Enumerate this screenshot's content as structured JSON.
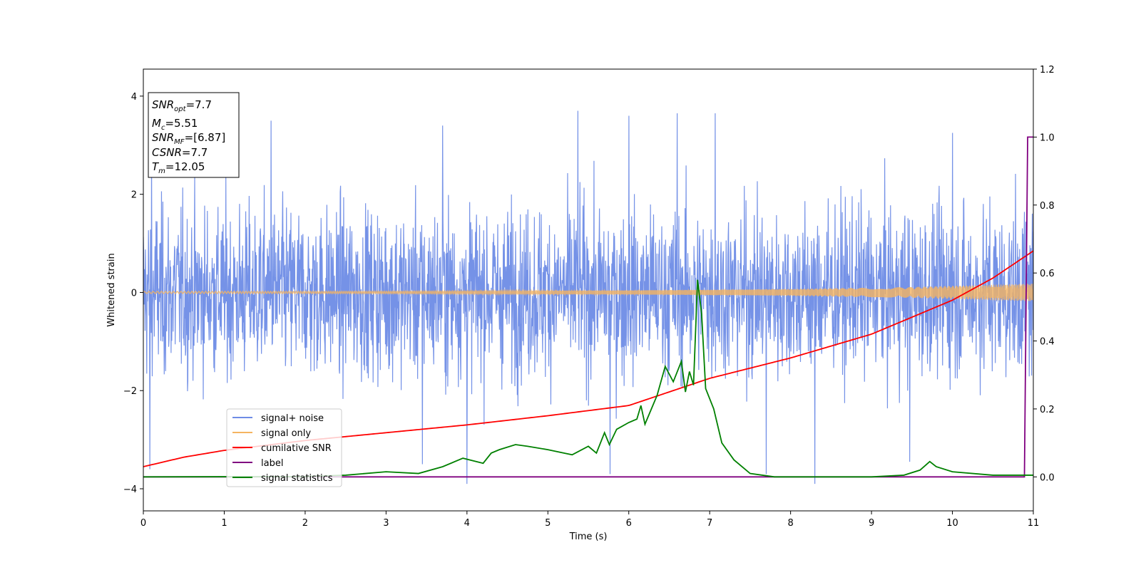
{
  "chart_data": {
    "type": "line",
    "xlabel": "Time (s)",
    "ylabel": "Whitened strain",
    "xlim": [
      0,
      11
    ],
    "ylim_left": [
      -4.45,
      4.55
    ],
    "ylim_right": [
      -0.1,
      1.2
    ],
    "x_ticks": [
      "0",
      "1",
      "2",
      "3",
      "4",
      "5",
      "6",
      "7",
      "8",
      "9",
      "10",
      "11"
    ],
    "y_left_ticks": [
      "4",
      "2",
      "0",
      "−2",
      "−4"
    ],
    "y_right_ticks": [
      "1.2",
      "1.0",
      "0.8",
      "0.6",
      "0.4",
      "0.2",
      "0.0"
    ],
    "legend": {
      "position": "lower-left",
      "entries": [
        {
          "label": "signal+ noise",
          "color": "#6e8ce6"
        },
        {
          "label": "signal only",
          "color": "#f5b461"
        },
        {
          "label": "cumilative SNR",
          "color": "#ff0000"
        },
        {
          "label": "label",
          "color": "#800080"
        },
        {
          "label": "signal statistics",
          "color": "#008000"
        }
      ]
    },
    "info_box": {
      "snr_opt": {
        "sym": "SNR",
        "sub": "opt",
        "val": "=7.7"
      },
      "mc": {
        "sym": "M",
        "sub": "c",
        "val": "=5.51"
      },
      "snr_mf": {
        "sym": "SNR",
        "sub": "MF",
        "val": "=[6.87]"
      },
      "csnr": {
        "sym": "CSNR",
        "val": "=7.7"
      },
      "tm": {
        "sym": "T",
        "sub": "m",
        "val": "=12.05"
      }
    },
    "series": [
      {
        "name": "signal+ noise",
        "axis": "left",
        "color": "#6e8ce6",
        "description": "whitened noisy strain, roughly between -2.5 and 2.5 with spikes to about +3.7 and -3.9",
        "envelope_upper": 2.3,
        "envelope_lower": -2.3,
        "peaks": [
          {
            "x": 0.1,
            "y": 2.9
          },
          {
            "x": 1.58,
            "y": 3.5
          },
          {
            "x": 3.7,
            "y": 3.4
          },
          {
            "x": 5.37,
            "y": 3.7
          },
          {
            "x": 6.0,
            "y": 3.6
          },
          {
            "x": 6.6,
            "y": 3.65
          },
          {
            "x": 7.07,
            "y": 3.65
          },
          {
            "x": 10.0,
            "y": 3.25
          },
          {
            "x": 4.0,
            "y": -3.9
          },
          {
            "x": 8.3,
            "y": -3.9
          },
          {
            "x": 5.77,
            "y": -3.7
          },
          {
            "x": 7.7,
            "y": -3.7
          },
          {
            "x": 3.45,
            "y": -3.5
          },
          {
            "x": 0.08,
            "y": -3.6
          },
          {
            "x": 9.47,
            "y": -3.45
          }
        ]
      },
      {
        "name": "signal only",
        "axis": "left",
        "color": "#f5b461",
        "description": "chirp waveform, amplitude growing from ~0.02 at t=0 to ~0.18 at t=11",
        "amplitude": [
          {
            "x": 0,
            "y": 0.02
          },
          {
            "x": 3,
            "y": 0.025
          },
          {
            "x": 6,
            "y": 0.04
          },
          {
            "x": 8,
            "y": 0.07
          },
          {
            "x": 9.5,
            "y": 0.11
          },
          {
            "x": 11,
            "y": 0.18
          }
        ]
      },
      {
        "name": "cumilative SNR",
        "axis": "right",
        "color": "#ff0000",
        "points": [
          {
            "x": 0,
            "y": 0.03
          },
          {
            "x": 0.5,
            "y": 0.058
          },
          {
            "x": 1,
            "y": 0.078
          },
          {
            "x": 2,
            "y": 0.107
          },
          {
            "x": 3,
            "y": 0.13
          },
          {
            "x": 4,
            "y": 0.153
          },
          {
            "x": 5,
            "y": 0.18
          },
          {
            "x": 6,
            "y": 0.21
          },
          {
            "x": 7,
            "y": 0.29
          },
          {
            "x": 8,
            "y": 0.35
          },
          {
            "x": 9,
            "y": 0.42
          },
          {
            "x": 10,
            "y": 0.52
          },
          {
            "x": 10.5,
            "y": 0.585
          },
          {
            "x": 11,
            "y": 0.665
          }
        ]
      },
      {
        "name": "label",
        "axis": "right",
        "color": "#800080",
        "points": [
          {
            "x": 0,
            "y": 0.0
          },
          {
            "x": 10.89,
            "y": 0.0
          },
          {
            "x": 10.93,
            "y": 1.0
          },
          {
            "x": 11,
            "y": 1.0
          }
        ]
      },
      {
        "name": "signal statistics",
        "axis": "right",
        "color": "#008000",
        "points": [
          {
            "x": 0,
            "y": 0.0
          },
          {
            "x": 2.0,
            "y": 0.001
          },
          {
            "x": 2.5,
            "y": 0.005
          },
          {
            "x": 3.0,
            "y": 0.015
          },
          {
            "x": 3.4,
            "y": 0.01
          },
          {
            "x": 3.7,
            "y": 0.03
          },
          {
            "x": 3.95,
            "y": 0.055
          },
          {
            "x": 4.2,
            "y": 0.04
          },
          {
            "x": 4.3,
            "y": 0.07
          },
          {
            "x": 4.4,
            "y": 0.08
          },
          {
            "x": 4.6,
            "y": 0.095
          },
          {
            "x": 4.75,
            "y": 0.09
          },
          {
            "x": 5.0,
            "y": 0.08
          },
          {
            "x": 5.3,
            "y": 0.065
          },
          {
            "x": 5.5,
            "y": 0.09
          },
          {
            "x": 5.6,
            "y": 0.07
          },
          {
            "x": 5.7,
            "y": 0.13
          },
          {
            "x": 5.76,
            "y": 0.095
          },
          {
            "x": 5.85,
            "y": 0.14
          },
          {
            "x": 6.0,
            "y": 0.16
          },
          {
            "x": 6.1,
            "y": 0.17
          },
          {
            "x": 6.15,
            "y": 0.21
          },
          {
            "x": 6.2,
            "y": 0.155
          },
          {
            "x": 6.35,
            "y": 0.24
          },
          {
            "x": 6.45,
            "y": 0.325
          },
          {
            "x": 6.55,
            "y": 0.28
          },
          {
            "x": 6.65,
            "y": 0.34
          },
          {
            "x": 6.7,
            "y": 0.25
          },
          {
            "x": 6.75,
            "y": 0.31
          },
          {
            "x": 6.8,
            "y": 0.27
          },
          {
            "x": 6.85,
            "y": 0.58
          },
          {
            "x": 6.9,
            "y": 0.48
          },
          {
            "x": 6.95,
            "y": 0.26
          },
          {
            "x": 7.05,
            "y": 0.2
          },
          {
            "x": 7.15,
            "y": 0.1
          },
          {
            "x": 7.3,
            "y": 0.05
          },
          {
            "x": 7.5,
            "y": 0.01
          },
          {
            "x": 7.8,
            "y": 0.0
          },
          {
            "x": 9.0,
            "y": 0.0
          },
          {
            "x": 9.4,
            "y": 0.005
          },
          {
            "x": 9.6,
            "y": 0.02
          },
          {
            "x": 9.72,
            "y": 0.045
          },
          {
            "x": 9.8,
            "y": 0.03
          },
          {
            "x": 10.0,
            "y": 0.015
          },
          {
            "x": 10.5,
            "y": 0.005
          },
          {
            "x": 11.0,
            "y": 0.005
          }
        ]
      }
    ]
  }
}
